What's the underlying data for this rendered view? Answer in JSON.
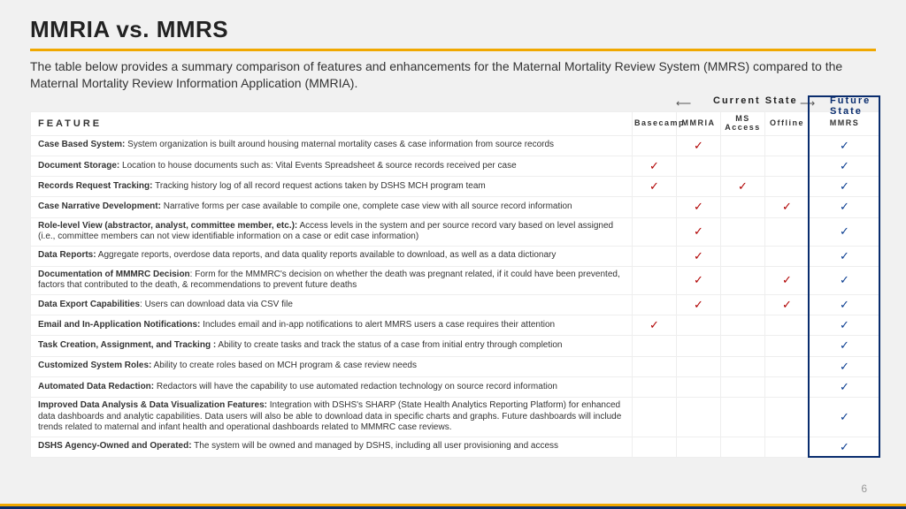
{
  "title": "MMRIA vs. MMRS",
  "subtitle": "The table below provides a summary comparison of features and enhancements for the Maternal Mortality Review System (MMRS) compared to the Maternal Mortality Review Information Application (MMRIA).",
  "header": {
    "feature": "FEATURE",
    "cols": [
      "Basecamp",
      "MMRIA",
      "MS Access",
      "Offline",
      "MMRS"
    ],
    "current_state": "Current State",
    "future_state": "Future State"
  },
  "page_number": "6",
  "colors": {
    "accent_rule": "#f0a800",
    "check_current": "#b00000",
    "check_future": "#0a3d91",
    "future_border": "#0a2d6e",
    "background": "#f1f1f1"
  },
  "rows": [
    {
      "bold": "Case Based System:",
      "desc": " System organization is built around housing maternal mortality cases & case information from source records",
      "c": [
        "",
        "✓",
        "",
        "",
        "✓"
      ]
    },
    {
      "bold": "Document Storage:",
      "desc": " Location to house documents such as: Vital Events Spreadsheet & source records received per case",
      "c": [
        "✓",
        "",
        "",
        "",
        "✓"
      ]
    },
    {
      "bold": "Records Request Tracking:",
      "desc": " Tracking history log of all record request actions taken by DSHS MCH program team",
      "c": [
        "✓",
        "",
        "✓",
        "",
        "✓"
      ]
    },
    {
      "bold": "Case Narrative Development:",
      "desc": " Narrative forms per case available to compile one, complete case view with all source record information",
      "c": [
        "",
        "✓",
        "",
        "✓",
        "✓"
      ]
    },
    {
      "bold": "Role-level View (abstractor, analyst, committee member, etc.):",
      "desc": " Access levels in the system and per source record vary based on level assigned (i.e., committee members can not view identifiable information on a case or edit case information)",
      "c": [
        "",
        "✓",
        "",
        "",
        "✓"
      ]
    },
    {
      "bold": "Data Reports:",
      "desc": " Aggregate reports, overdose data reports, and data quality reports available to download, as well as a data dictionary",
      "c": [
        "",
        "✓",
        "",
        "",
        "✓"
      ]
    },
    {
      "bold": "Documentation of MMMRC Decision",
      "desc": ": Form for the MMMRC's decision on whether the death was pregnant related, if it could have been prevented, factors that contributed to the death, & recommendations to prevent future deaths",
      "c": [
        "",
        "✓",
        "",
        "✓",
        "✓"
      ]
    },
    {
      "bold": "Data Export Capabilities",
      "desc": ": Users can download data via CSV file",
      "c": [
        "",
        "✓",
        "",
        "✓",
        "✓"
      ]
    },
    {
      "bold": "Email and In-Application Notifications:",
      "desc": " Includes email and in-app notifications to alert MMRS users a case requires their attention",
      "c": [
        "✓",
        "",
        "",
        "",
        "✓"
      ]
    },
    {
      "bold": "Task Creation, Assignment, and Tracking :",
      "desc": " Ability to create tasks and track the status of a case from initial entry through completion",
      "c": [
        "",
        "",
        "",
        "",
        "✓"
      ]
    },
    {
      "bold": "Customized System Roles:",
      "desc": " Ability to create roles based on MCH program & case review needs",
      "c": [
        "",
        "",
        "",
        "",
        "✓"
      ]
    },
    {
      "bold": "Automated Data Redaction:",
      "desc": " Redactors will have the capability to use automated redaction technology on source record information",
      "c": [
        "",
        "",
        "",
        "",
        "✓"
      ]
    },
    {
      "bold": "Improved Data Analysis & Data Visualization Features:",
      "desc": " Integration with DSHS's SHARP (State Health Analytics Reporting Platform) for enhanced data dashboards and analytic capabilities. Data users will also be able to download data in specific charts and graphs. Future dashboards will include trends related to maternal and infant health and operational dashboards related to MMMRC case reviews.",
      "c": [
        "",
        "",
        "",
        "",
        "✓"
      ]
    },
    {
      "bold": "DSHS Agency-Owned and Operated:",
      "desc": " The system will be owned and managed by DSHS, including all user provisioning and access",
      "c": [
        "",
        "",
        "",
        "",
        "✓"
      ]
    }
  ]
}
